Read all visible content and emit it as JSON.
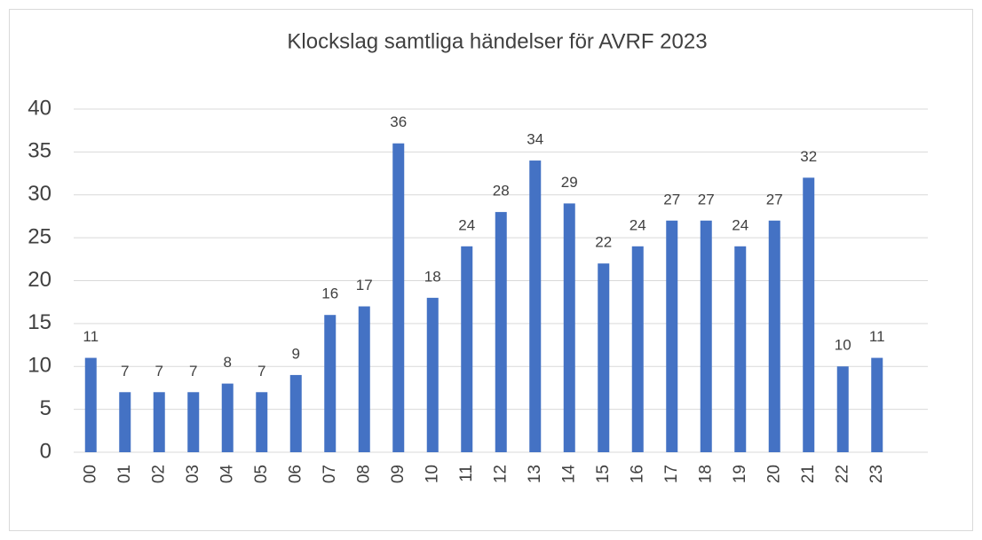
{
  "chart_data": {
    "type": "bar",
    "title": "Klockslag samtliga händelser för AVRF 2023",
    "categories": [
      "00",
      "01",
      "02",
      "03",
      "04",
      "05",
      "06",
      "07",
      "08",
      "09",
      "10",
      "11",
      "12",
      "13",
      "14",
      "15",
      "16",
      "17",
      "18",
      "19",
      "20",
      "21",
      "22",
      "23"
    ],
    "values": [
      11,
      7,
      7,
      7,
      8,
      7,
      9,
      16,
      17,
      36,
      18,
      24,
      28,
      34,
      29,
      22,
      24,
      27,
      27,
      24,
      27,
      32,
      10,
      11
    ],
    "color": "#4472c4",
    "ylim": [
      0,
      40
    ],
    "yticks": [
      0,
      5,
      10,
      15,
      20,
      25,
      30,
      35,
      40
    ],
    "grid": true
  }
}
